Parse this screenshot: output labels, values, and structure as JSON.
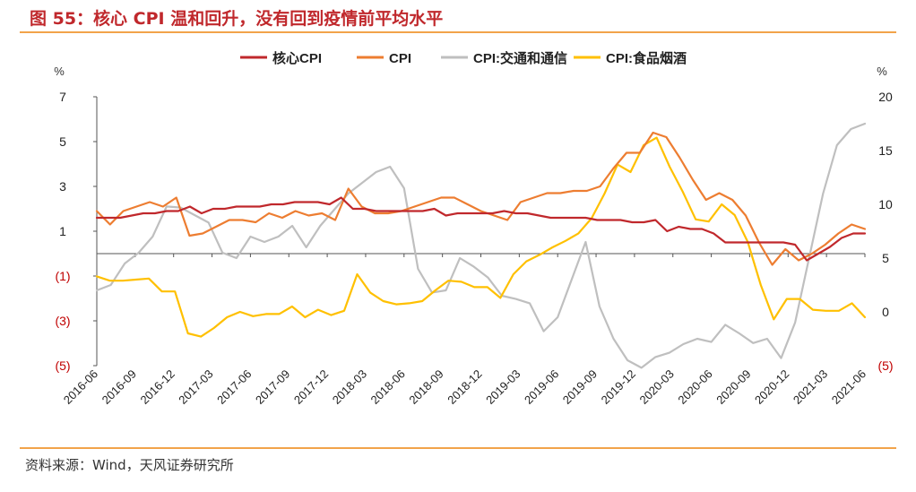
{
  "header": {
    "title": "图 55：核心 CPI 温和回升，没有回到疫情前平均水平"
  },
  "footer": {
    "source": "资料来源：Wind，天风证券研究所"
  },
  "colors": {
    "core_cpi": "#c0282c",
    "cpi": "#ed7d31",
    "transport": "#bfbfbf",
    "food": "#ffc000",
    "negative_label": "#c00000",
    "axis": "#555555",
    "rule": "#f2a34a"
  },
  "chart_data": {
    "type": "line",
    "title": "",
    "left_axis": {
      "unit": "%",
      "ylim": [
        -5,
        7
      ],
      "ticks": [
        7,
        5,
        3,
        1,
        -1,
        -3,
        -5
      ],
      "tick_labels": [
        "7",
        "5",
        "3",
        "1",
        "(1)",
        "(3)",
        "(5)"
      ]
    },
    "right_axis": {
      "unit": "%",
      "ylim": [
        -5,
        20
      ],
      "ticks": [
        20,
        15,
        10,
        5,
        0,
        -5
      ],
      "tick_labels": [
        "20",
        "15",
        "10",
        "5",
        "0",
        "(5)"
      ]
    },
    "x_tick_labels": [
      "2016-06",
      "2016-09",
      "2016-12",
      "2017-03",
      "2017-06",
      "2017-09",
      "2017-12",
      "2018-03",
      "2018-06",
      "2018-09",
      "2018-12",
      "2019-03",
      "2019-06",
      "2019-09",
      "2019-12",
      "2020-03",
      "2020-06",
      "2020-09",
      "2020-12",
      "2021-03",
      "2021-06"
    ],
    "legend_position": "top-center",
    "grid": false,
    "series": [
      {
        "name": "核心CPI",
        "axis": "left",
        "color_key": "core_cpi",
        "values": [
          1.6,
          1.6,
          1.6,
          1.7,
          1.8,
          1.8,
          1.9,
          1.9,
          2.1,
          1.8,
          2.0,
          2.0,
          2.1,
          2.1,
          2.1,
          2.2,
          2.2,
          2.3,
          2.3,
          2.3,
          2.2,
          2.5,
          2.0,
          2.0,
          1.9,
          1.9,
          1.9,
          1.9,
          1.9,
          2.0,
          1.7,
          1.8,
          1.8,
          1.8,
          1.8,
          1.9,
          1.8,
          1.8,
          1.7,
          1.6,
          1.6,
          1.6,
          1.6,
          1.5,
          1.5,
          1.5,
          1.4,
          1.4,
          1.5,
          1.0,
          1.2,
          1.1,
          1.1,
          0.9,
          0.5,
          0.5,
          0.5,
          0.5,
          0.5,
          0.5,
          0.4,
          -0.3,
          0.0,
          0.3,
          0.7,
          0.9,
          0.9
        ]
      },
      {
        "name": "CPI",
        "axis": "left",
        "color_key": "cpi",
        "values": [
          1.9,
          1.3,
          1.9,
          2.1,
          2.3,
          2.1,
          2.5,
          0.8,
          0.9,
          1.2,
          1.5,
          1.5,
          1.4,
          1.8,
          1.6,
          1.9,
          1.7,
          1.8,
          1.5,
          2.9,
          2.1,
          1.8,
          1.8,
          1.9,
          2.1,
          2.3,
          2.5,
          2.5,
          2.2,
          1.9,
          1.7,
          1.5,
          2.3,
          2.5,
          2.7,
          2.7,
          2.8,
          2.8,
          3.0,
          3.8,
          4.5,
          4.5,
          5.4,
          5.2,
          4.3,
          3.3,
          2.4,
          2.7,
          2.4,
          1.7,
          0.5,
          -0.5,
          0.2,
          -0.3,
          0.0,
          0.4,
          0.9,
          1.3,
          1.1
        ]
      },
      {
        "name": "CPI:交通和通信",
        "axis": "right",
        "color_key": "transport",
        "values": [
          2.0,
          2.5,
          4.5,
          5.5,
          7.0,
          9.8,
          9.7,
          9.0,
          8.3,
          5.5,
          5.0,
          7.0,
          6.5,
          7.0,
          8.0,
          6.0,
          8.0,
          9.5,
          11.0,
          12.0,
          13.0,
          13.5,
          11.5,
          4.0,
          1.8,
          2.0,
          5.0,
          4.2,
          3.2,
          1.5,
          1.2,
          0.8,
          -1.8,
          -0.5,
          3.0,
          6.5,
          0.5,
          -2.5,
          -4.5,
          -5.2,
          -4.2,
          -3.8,
          -3.0,
          -2.5,
          -2.8,
          -1.2,
          -2.0,
          -2.9,
          -2.5,
          -4.3,
          -1.0,
          5.0,
          11.0,
          15.5,
          17.0,
          17.5
        ]
      },
      {
        "name": "CPI:食品烟酒",
        "axis": "right",
        "color_key": "food",
        "values": [
          3.3,
          2.9,
          2.9,
          3.0,
          3.1,
          1.9,
          1.9,
          -2.0,
          -2.3,
          -1.5,
          -0.5,
          0.0,
          -0.4,
          -0.2,
          -0.2,
          0.5,
          -0.5,
          0.2,
          -0.3,
          0.1,
          3.5,
          1.8,
          1.0,
          0.7,
          0.8,
          1.0,
          2.0,
          2.9,
          2.8,
          2.3,
          2.3,
          1.3,
          3.5,
          4.7,
          5.3,
          6.0,
          6.6,
          7.3,
          8.7,
          11.0,
          13.7,
          13.0,
          15.5,
          16.2,
          13.5,
          11.2,
          8.6,
          8.4,
          10.0,
          9.0,
          6.5,
          2.5,
          -0.7,
          1.2,
          1.2,
          0.2,
          0.1,
          0.1,
          0.8,
          -0.5
        ]
      }
    ]
  }
}
